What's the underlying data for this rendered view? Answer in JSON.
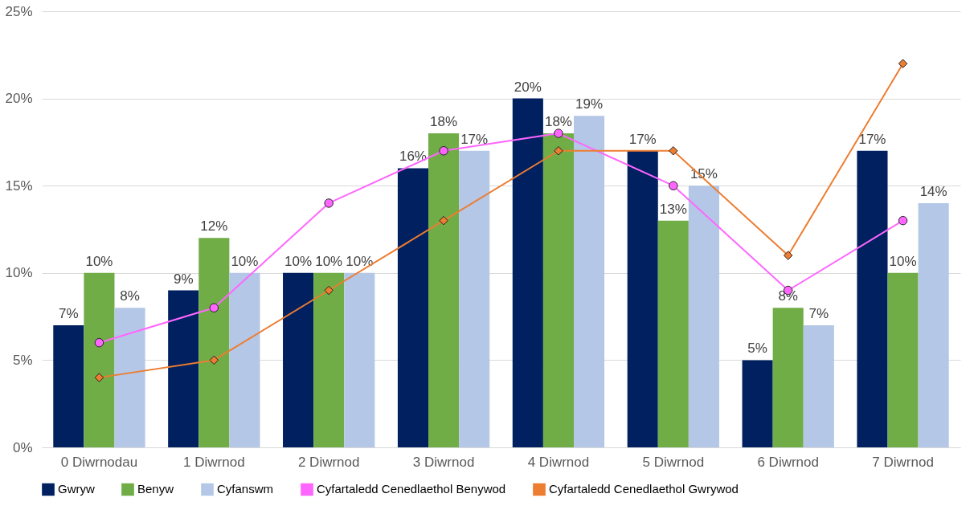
{
  "chart_data": {
    "type": "bar",
    "categories": [
      "0 Diwrnodau",
      "1 Diwrnod",
      "2 Diwrnod",
      "3 Diwrnod",
      "4 Diwrnod",
      "5 Diwrnod",
      "6 Diwrnod",
      "7 Diwrnod"
    ],
    "series": [
      {
        "name": "Gwryw",
        "color": "#002060",
        "values": [
          7,
          9,
          10,
          16,
          20,
          17,
          5,
          17
        ],
        "value_labels": [
          "7%",
          "9%",
          "10%",
          "16%",
          "20%",
          "17%",
          "5%",
          "17%"
        ]
      },
      {
        "name": "Benyw",
        "color": "#70ad47",
        "values": [
          10,
          12,
          10,
          18,
          18,
          13,
          8,
          10
        ],
        "value_labels": [
          "10%",
          "12%",
          "10%",
          "18%",
          "18%",
          "13%",
          "8%",
          "10%"
        ]
      },
      {
        "name": "Cyfanswm",
        "color": "#b4c7e7",
        "values": [
          8,
          10,
          10,
          17,
          19,
          15,
          7,
          14
        ],
        "value_labels": [
          "8%",
          "10%",
          "10%",
          "17%",
          "19%",
          "15%",
          "7%",
          "14%"
        ]
      },
      {
        "name": "Cyfartaledd Cenedlaethol Benywod",
        "type": "line",
        "marker": "circle",
        "color": "#ff66ff",
        "values": [
          6,
          8,
          14,
          17,
          18,
          15,
          9,
          13
        ]
      },
      {
        "name": "Cyfartaledd Cenedlaethol Gwrywod",
        "type": "line",
        "marker": "diamond",
        "color": "#ed7d31",
        "values": [
          4,
          5,
          9,
          13,
          17,
          17,
          11,
          22
        ]
      }
    ],
    "ylim": [
      0,
      25
    ],
    "yticks": [
      {
        "value": 0,
        "label": "0%"
      },
      {
        "value": 5,
        "label": "5%"
      },
      {
        "value": 10,
        "label": "10%"
      },
      {
        "value": 15,
        "label": "15%"
      },
      {
        "value": 20,
        "label": "20%"
      },
      {
        "value": 25,
        "label": "25%"
      }
    ],
    "grid": "y",
    "legend": "bottom"
  }
}
